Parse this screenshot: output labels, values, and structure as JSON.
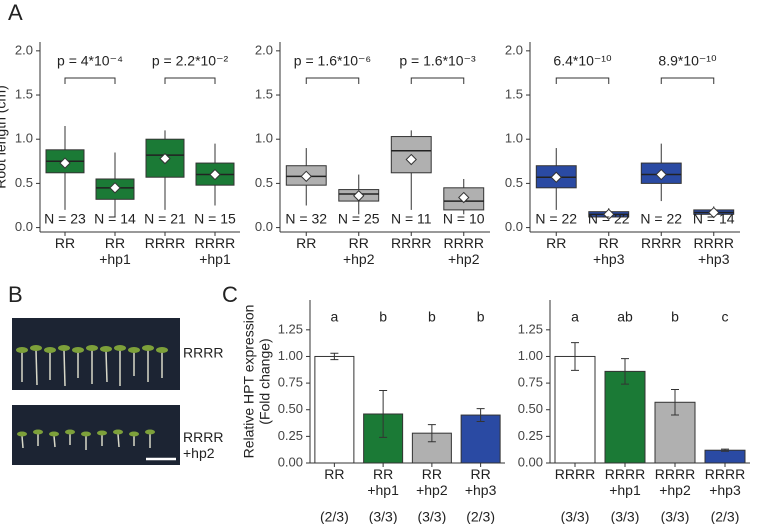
{
  "panel_labels": [
    "A",
    "B",
    "C"
  ],
  "photo": {
    "labels": [
      "RRRR",
      "RRRR +hp2"
    ]
  },
  "chart_data": [
    {
      "type": "box",
      "y_label": [
        "Root length (cm)"
      ],
      "categories": [
        "RR",
        "RR +hp1",
        "RRRR",
        "RRRR +hp1"
      ],
      "color": "#1b7a36",
      "min": [
        0.2,
        0.12,
        0.2,
        0.25
      ],
      "q1": [
        0.62,
        0.32,
        0.57,
        0.48
      ],
      "median": [
        0.75,
        0.45,
        0.82,
        0.6
      ],
      "q3": [
        0.88,
        0.55,
        1.0,
        0.73
      ],
      "max": [
        1.15,
        0.85,
        1.1,
        0.95
      ],
      "mean": [
        0.73,
        0.45,
        0.78,
        0.6
      ],
      "n_labels": [
        "N = 23",
        "N = 14",
        "N = 21",
        "N = 15"
      ],
      "comparison_labels": [
        "p = 4*10⁻⁴",
        "p = 2.2*10⁻²"
      ],
      "ylim": [
        -0.05,
        2.1
      ],
      "yticks": [
        {
          "value": 0,
          "label": "0.0"
        },
        {
          "value": 0.5,
          "label": "0.5"
        },
        {
          "value": 1,
          "label": "1.0"
        },
        {
          "value": 1.5,
          "label": "1.5"
        },
        {
          "value": 2,
          "label": "2.0"
        }
      ]
    },
    {
      "type": "box",
      "categories": [
        "RR",
        "RR +hp2",
        "RRRR",
        "RRRR +hp2"
      ],
      "color": "#b0b0b0",
      "min": [
        0.25,
        0.15,
        0.2,
        0.15
      ],
      "q1": [
        0.48,
        0.3,
        0.62,
        0.2
      ],
      "median": [
        0.58,
        0.38,
        0.87,
        0.3
      ],
      "q3": [
        0.7,
        0.43,
        1.03,
        0.45
      ],
      "max": [
        0.9,
        0.6,
        1.1,
        0.55
      ],
      "mean": [
        0.58,
        0.36,
        0.77,
        0.34
      ],
      "n_labels": [
        "N = 32",
        "N = 25",
        "N = 11",
        "N = 10"
      ],
      "comparison_labels": [
        "p = 1.6*10⁻⁶",
        "p = 1.6*10⁻³"
      ],
      "ylim": [
        -0.05,
        2.1
      ],
      "yticks": [
        {
          "value": 0,
          "label": "0.0"
        },
        {
          "value": 0.5,
          "label": "0.5"
        },
        {
          "value": 1,
          "label": "1.0"
        },
        {
          "value": 1.5,
          "label": "1.5"
        },
        {
          "value": 2,
          "label": "2.0"
        }
      ]
    },
    {
      "type": "box",
      "categories": [
        "RR",
        "RR +hp3",
        "RRRR",
        "RRRR +hp3"
      ],
      "color": "#2a4aa3",
      "min": [
        0.2,
        0.1,
        0.3,
        0.12
      ],
      "q1": [
        0.45,
        0.12,
        0.5,
        0.15
      ],
      "median": [
        0.57,
        0.15,
        0.6,
        0.17
      ],
      "q3": [
        0.7,
        0.18,
        0.73,
        0.2
      ],
      "max": [
        0.9,
        0.22,
        0.95,
        0.24
      ],
      "mean": [
        0.57,
        0.15,
        0.6,
        0.17
      ],
      "n_labels": [
        "N = 22",
        "N = 22",
        "N = 22",
        "N = 14"
      ],
      "comparison_labels": [
        "6.4*10⁻¹⁰",
        "8.9*10⁻¹⁰"
      ],
      "ylim": [
        -0.05,
        2.1
      ],
      "yticks": [
        {
          "value": 0,
          "label": "0.0"
        },
        {
          "value": 0.5,
          "label": "0.5"
        },
        {
          "value": 1,
          "label": "1.0"
        },
        {
          "value": 1.5,
          "label": "1.5"
        },
        {
          "value": 2,
          "label": "2.0"
        }
      ]
    },
    {
      "type": "bar",
      "y_label": [
        "Relative HPT expression",
        "(Fold change)"
      ],
      "categories": [
        "RR",
        "RR +hp1",
        "RR +hp2",
        "RR +hp3"
      ],
      "values": [
        1.0,
        0.46,
        0.28,
        0.45
      ],
      "errors": [
        0.03,
        0.22,
        0.08,
        0.06
      ],
      "colors": [
        "#ffffff",
        "#1b7a36",
        "#b0b0b0",
        "#2a4aa3"
      ],
      "letters": [
        "a",
        "b",
        "b",
        "b"
      ],
      "replicates": [
        "(2/3)",
        "(3/3)",
        "(3/3)",
        "(2/3)"
      ],
      "ylim": [
        0,
        1.53
      ],
      "yticks": [
        {
          "value": 0,
          "label": "0.00"
        },
        {
          "value": 0.25,
          "label": "0.25"
        },
        {
          "value": 0.5,
          "label": "0.50"
        },
        {
          "value": 0.75,
          "label": "0.75"
        },
        {
          "value": 1,
          "label": "1.00"
        },
        {
          "value": 1.25,
          "label": "1.25"
        }
      ]
    },
    {
      "type": "bar",
      "categories": [
        "RRRR",
        "RRRR +hp1",
        "RRRR +hp2",
        "RRRR +hp3"
      ],
      "values": [
        1.0,
        0.86,
        0.57,
        0.12
      ],
      "errors": [
        0.13,
        0.12,
        0.12,
        0.01
      ],
      "colors": [
        "#ffffff",
        "#1b7a36",
        "#b0b0b0",
        "#2a4aa3"
      ],
      "letters": [
        "a",
        "ab",
        "b",
        "c"
      ],
      "replicates": [
        "(3/3)",
        "(3/3)",
        "(3/3)",
        "(2/3)"
      ],
      "ylim": [
        0,
        1.53
      ],
      "yticks": [
        {
          "value": 0,
          "label": "0.00"
        },
        {
          "value": 0.25,
          "label": "0.25"
        },
        {
          "value": 0.5,
          "label": "0.50"
        },
        {
          "value": 0.75,
          "label": "0.75"
        },
        {
          "value": 1,
          "label": "1.00"
        },
        {
          "value": 1.25,
          "label": "1.25"
        }
      ]
    }
  ]
}
